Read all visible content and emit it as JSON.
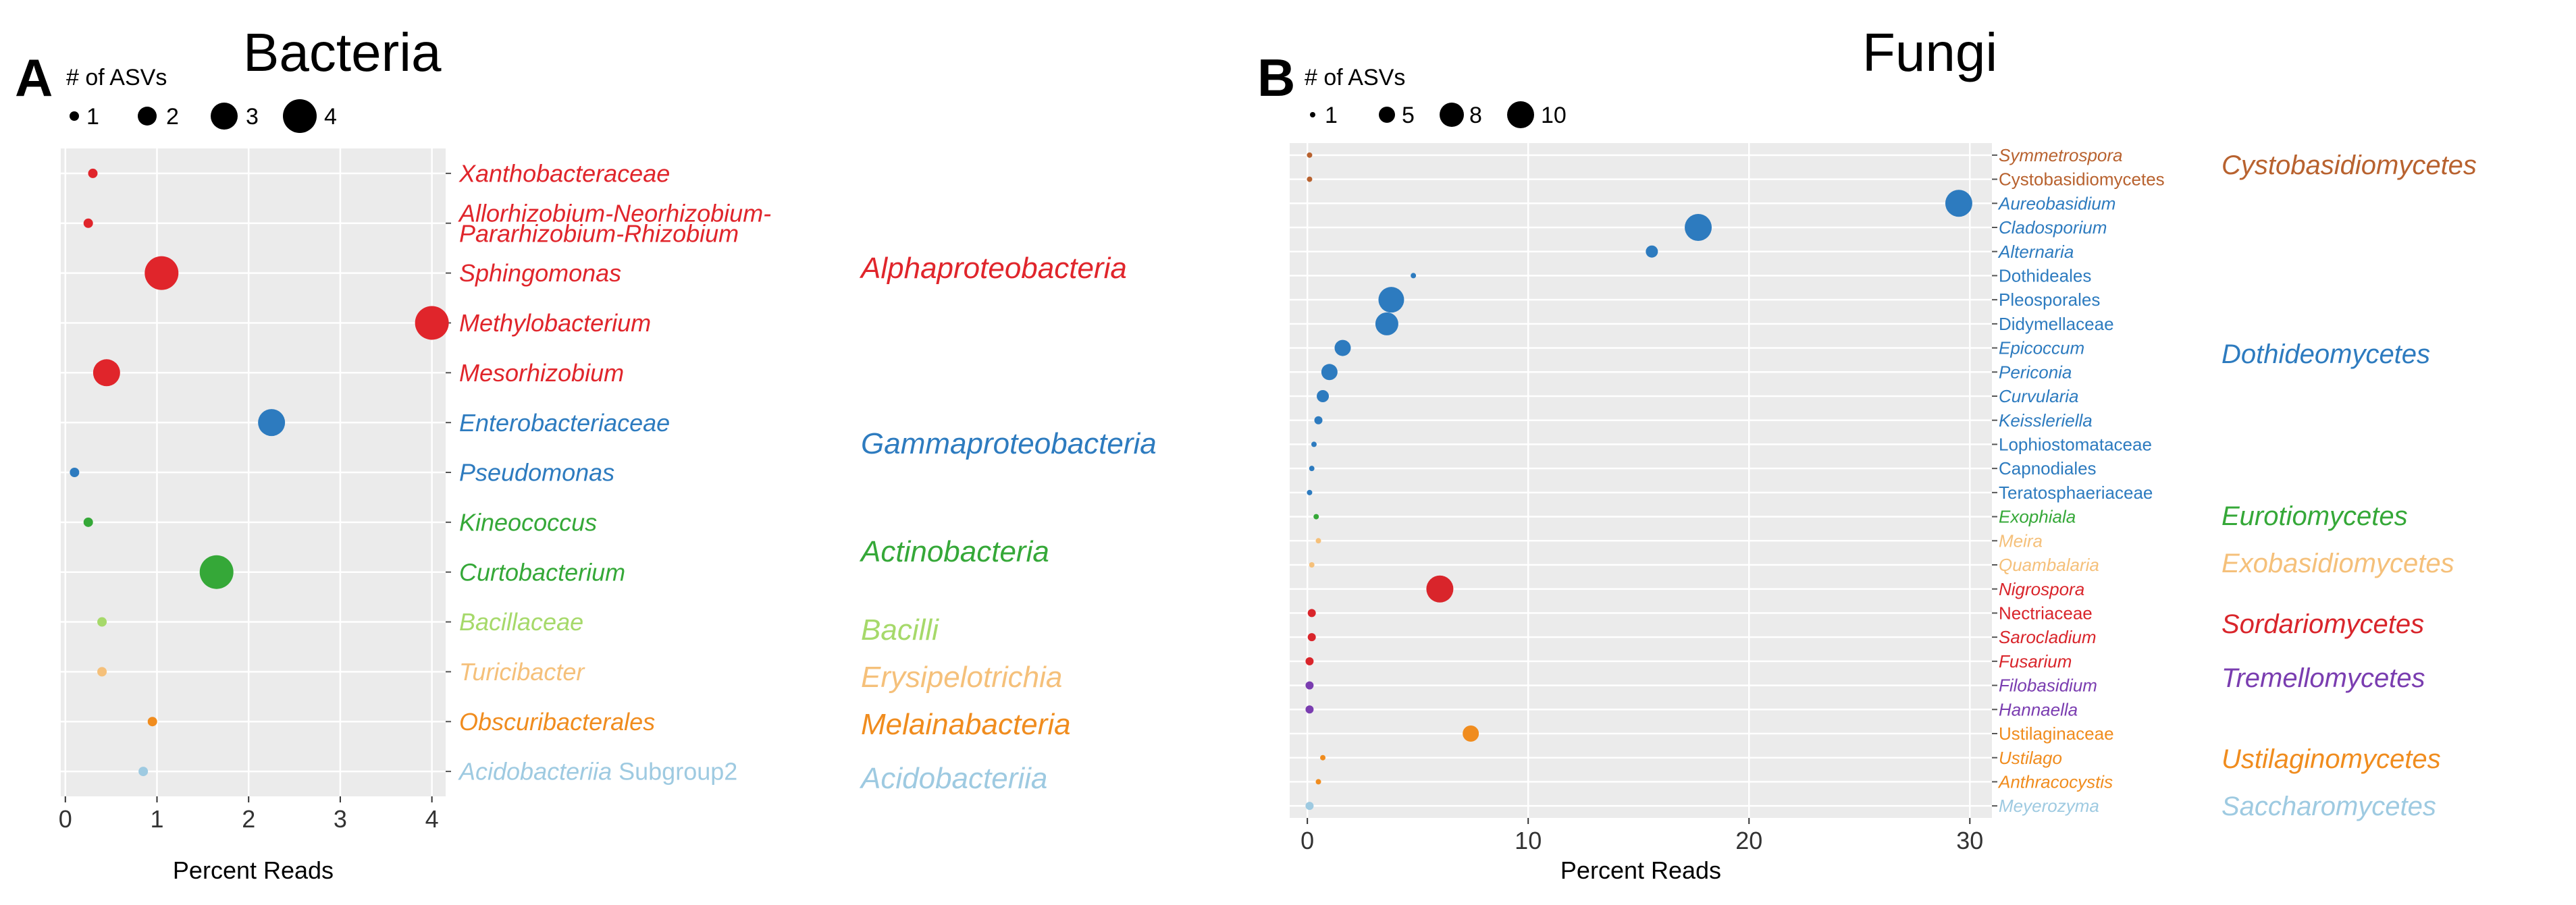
{
  "chart_data": [
    {
      "type": "scatter",
      "panel_label": "A",
      "title": "Bacteria",
      "xlabel": "Percent Reads",
      "xlim": [
        0,
        4
      ],
      "xticks": [
        0,
        1,
        2,
        3,
        4
      ],
      "size_legend": {
        "title": "# of ASVs",
        "values": [
          1,
          2,
          3,
          4
        ]
      },
      "categories": [
        {
          "name": "Xanthobacteraceae",
          "x": 0.3,
          "asvs": 1,
          "class": "Alphaproteobacteria",
          "italic": true
        },
        {
          "name": "Allorhizobium-Neorhizobium-\nPararhizobium-Rhizobium",
          "x": 0.25,
          "asvs": 1,
          "class": "Alphaproteobacteria",
          "italic": true
        },
        {
          "name": "Sphingomonas",
          "x": 1.05,
          "asvs": 4,
          "class": "Alphaproteobacteria",
          "italic": true
        },
        {
          "name": "Methylobacterium",
          "x": 4.0,
          "asvs": 4,
          "class": "Alphaproteobacteria",
          "italic": true
        },
        {
          "name": "Mesorhizobium",
          "x": 0.45,
          "asvs": 3,
          "class": "Alphaproteobacteria",
          "italic": true
        },
        {
          "name": "Enterobacteriaceae",
          "x": 2.25,
          "asvs": 3,
          "class": "Gammaproteobacteria",
          "italic": true
        },
        {
          "name": "Pseudomonas",
          "x": 0.1,
          "asvs": 1,
          "class": "Gammaproteobacteria",
          "italic": true
        },
        {
          "name": "Kineococcus",
          "x": 0.25,
          "asvs": 1,
          "class": "Actinobacteria",
          "italic": true
        },
        {
          "name": "Curtobacterium",
          "x": 1.65,
          "asvs": 4,
          "class": "Actinobacteria",
          "italic": true
        },
        {
          "name": "Bacillaceae",
          "x": 0.4,
          "asvs": 1,
          "class": "Bacilli",
          "italic": true
        },
        {
          "name": "Turicibacter",
          "x": 0.4,
          "asvs": 1,
          "class": "Erysipelotrichia",
          "italic": true
        },
        {
          "name": "Obscuribacterales",
          "x": 0.95,
          "asvs": 1,
          "class": "Melainabacteria",
          "italic": true
        },
        {
          "name": "Acidobacteriia",
          "suffix": " Subgroup2",
          "x": 0.85,
          "asvs": 1,
          "class": "Acidobacteriia",
          "italic": true
        }
      ],
      "classes": [
        {
          "name": "Alphaproteobacteria",
          "color": "#e0252b"
        },
        {
          "name": "Gammaproteobacteria",
          "color": "#2d7bbf"
        },
        {
          "name": "Actinobacteria",
          "color": "#35a838"
        },
        {
          "name": "Bacilli",
          "color": "#a6d96a"
        },
        {
          "name": "Erysipelotrichia",
          "color": "#f5c07a"
        },
        {
          "name": "Melainabacteria",
          "color": "#f08c1e"
        },
        {
          "name": "Acidobacteriia",
          "color": "#9ecae1"
        }
      ]
    },
    {
      "type": "scatter",
      "panel_label": "B",
      "title": "Fungi",
      "xlabel": "Percent Reads",
      "xlim": [
        0,
        30
      ],
      "xticks": [
        0,
        10,
        20,
        30
      ],
      "size_legend": {
        "title": "# of ASVs",
        "values": [
          1,
          5,
          8,
          10
        ]
      },
      "categories": [
        {
          "name": "Symmetrospora",
          "x": 0.1,
          "asvs": 1,
          "class": "Cystobasidiomycetes",
          "italic": true
        },
        {
          "name": "Cystobasidiomycetes",
          "x": 0.1,
          "asvs": 1,
          "class": "Cystobasidiomycetes",
          "italic": false
        },
        {
          "name": "Aureobasidium",
          "x": 29.5,
          "asvs": 10,
          "class": "Dothideomycetes",
          "italic": true
        },
        {
          "name": "Cladosporium",
          "x": 17.7,
          "asvs": 10,
          "class": "Dothideomycetes",
          "italic": true
        },
        {
          "name": "Alternaria",
          "x": 15.6,
          "asvs": 3,
          "class": "Dothideomycetes",
          "italic": true
        },
        {
          "name": "Dothideales",
          "x": 4.8,
          "asvs": 1,
          "class": "Dothideomycetes",
          "italic": false
        },
        {
          "name": "Pleosporales",
          "x": 3.8,
          "asvs": 9,
          "class": "Dothideomycetes",
          "italic": false
        },
        {
          "name": "Didymellaceae",
          "x": 3.6,
          "asvs": 7,
          "class": "Dothideomycetes",
          "italic": false
        },
        {
          "name": "Epicoccum",
          "x": 1.6,
          "asvs": 5,
          "class": "Dothideomycetes",
          "italic": true
        },
        {
          "name": "Periconia",
          "x": 1.0,
          "asvs": 5,
          "class": "Dothideomycetes",
          "italic": true
        },
        {
          "name": "Curvularia",
          "x": 0.7,
          "asvs": 3,
          "class": "Dothideomycetes",
          "italic": true
        },
        {
          "name": "Keissleriella",
          "x": 0.5,
          "asvs": 2,
          "class": "Dothideomycetes",
          "italic": true
        },
        {
          "name": "Lophiostomataceae",
          "x": 0.3,
          "asvs": 1,
          "class": "Dothideomycetes",
          "italic": false
        },
        {
          "name": "Capnodiales",
          "x": 0.2,
          "asvs": 1,
          "class": "Dothideomycetes",
          "italic": false
        },
        {
          "name": "Teratosphaeriaceae",
          "x": 0.1,
          "asvs": 1,
          "class": "Dothideomycetes",
          "italic": false
        },
        {
          "name": "Exophiala",
          "x": 0.4,
          "asvs": 1,
          "class": "Eurotiomycetes",
          "italic": true
        },
        {
          "name": "Meira",
          "x": 0.5,
          "asvs": 1,
          "class": "Exobasidiomycetes",
          "italic": true
        },
        {
          "name": "Quambalaria",
          "x": 0.2,
          "asvs": 1,
          "class": "Exobasidiomycetes",
          "italic": true
        },
        {
          "name": "Nigrospora",
          "x": 6.0,
          "asvs": 10,
          "class": "Sordariomycetes",
          "italic": true
        },
        {
          "name": "Nectriaceae",
          "x": 0.2,
          "asvs": 2,
          "class": "Sordariomycetes",
          "italic": false
        },
        {
          "name": "Sarocladium",
          "x": 0.2,
          "asvs": 2,
          "class": "Sordariomycetes",
          "italic": true
        },
        {
          "name": "Fusarium",
          "x": 0.1,
          "asvs": 2,
          "class": "Sordariomycetes",
          "italic": true
        },
        {
          "name": "Filobasidium",
          "x": 0.1,
          "asvs": 2,
          "class": "Tremellomycetes",
          "italic": true
        },
        {
          "name": "Hannaella",
          "x": 0.1,
          "asvs": 2,
          "class": "Tremellomycetes",
          "italic": true
        },
        {
          "name": "Ustilaginaceae",
          "x": 7.4,
          "asvs": 5,
          "class": "Ustilaginomycetes",
          "italic": false
        },
        {
          "name": "Ustilago",
          "x": 0.7,
          "asvs": 1,
          "class": "Ustilaginomycetes",
          "italic": true
        },
        {
          "name": "Anthracocystis",
          "x": 0.5,
          "asvs": 1,
          "class": "Ustilaginomycetes",
          "italic": true
        },
        {
          "name": "Meyerozyma",
          "x": 0.1,
          "asvs": 2,
          "class": "Saccharomycetes",
          "italic": true
        }
      ],
      "classes": [
        {
          "name": "Cystobasidiomycetes",
          "color": "#b8622f"
        },
        {
          "name": "Dothideomycetes",
          "color": "#2d7bbf"
        },
        {
          "name": "Eurotiomycetes",
          "color": "#35a838"
        },
        {
          "name": "Exobasidiomycetes",
          "color": "#f5c07a"
        },
        {
          "name": "Sordariomycetes",
          "color": "#d9252b"
        },
        {
          "name": "Tremellomycetes",
          "color": "#7a3db0"
        },
        {
          "name": "Ustilaginomycetes",
          "color": "#f08c1e"
        },
        {
          "name": "Saccharomycetes",
          "color": "#9ecae1"
        }
      ]
    }
  ]
}
